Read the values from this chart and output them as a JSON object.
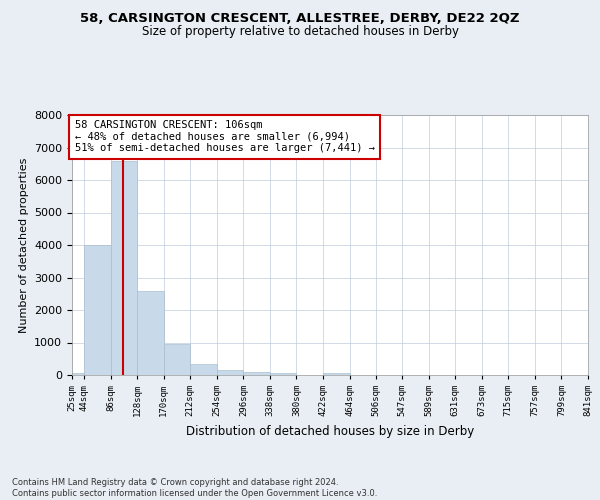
{
  "title": "58, CARSINGTON CRESCENT, ALLESTREE, DERBY, DE22 2QZ",
  "subtitle": "Size of property relative to detached houses in Derby",
  "xlabel": "Distribution of detached houses by size in Derby",
  "ylabel": "Number of detached properties",
  "bin_edges": [
    25,
    44,
    86,
    128,
    170,
    212,
    254,
    296,
    338,
    380,
    422,
    464,
    506,
    547,
    589,
    631,
    673,
    715,
    757,
    799,
    841
  ],
  "bar_heights": [
    75,
    4000,
    6600,
    2600,
    950,
    325,
    150,
    100,
    75,
    0,
    75,
    0,
    0,
    0,
    0,
    0,
    0,
    0,
    0,
    0
  ],
  "bar_color": "#c8d9ea",
  "bar_edgecolor": "#aabfcf",
  "bar_linewidth": 0.5,
  "red_line_x": 106,
  "red_line_color": "#cc0000",
  "ylim": [
    0,
    8000
  ],
  "yticks": [
    0,
    1000,
    2000,
    3000,
    4000,
    5000,
    6000,
    7000,
    8000
  ],
  "annotation_text": "58 CARSINGTON CRESCENT: 106sqm\n← 48% of detached houses are smaller (6,994)\n51% of semi-detached houses are larger (7,441) →",
  "annotation_box_color": "white",
  "annotation_box_edgecolor": "#cc0000",
  "bg_color": "#e8eef4",
  "plot_bg_color": "white",
  "grid_color": "#c0ccdd",
  "footer_text": "Contains HM Land Registry data © Crown copyright and database right 2024.\nContains public sector information licensed under the Open Government Licence v3.0.",
  "tick_labels": [
    "25sqm",
    "44sqm",
    "86sqm",
    "128sqm",
    "170sqm",
    "212sqm",
    "254sqm",
    "296sqm",
    "338sqm",
    "380sqm",
    "422sqm",
    "464sqm",
    "506sqm",
    "547sqm",
    "589sqm",
    "631sqm",
    "673sqm",
    "715sqm",
    "757sqm",
    "799sqm",
    "841sqm"
  ]
}
